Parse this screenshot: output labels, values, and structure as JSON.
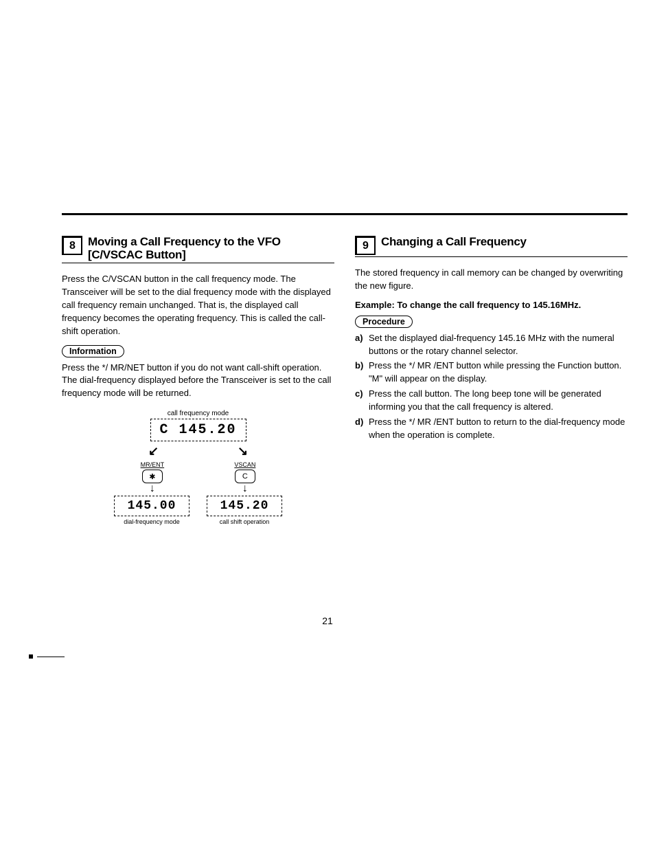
{
  "page_number": "21",
  "left": {
    "section_number": "8",
    "section_title": "Moving a Call Frequency to the VFO [C/VSCAC Button]",
    "para1": "Press the C/VSCAN button in the call frequency mode. The Transceiver will be set to the dial frequency mode with the displayed call frequency remain unchanged. That is, the displayed call frequency becomes the operating frequency. This is called the call-shift operation.",
    "info_label": "Information",
    "para2": "Press the */ MR/NET button if you do not want call-shift operation. The dial-frequency displayed before the Transceiver is set to the call frequency mode will be returned.",
    "diagram": {
      "top_label": "call frequency mode",
      "top_lcd": "C 145.20",
      "btn_left_label": "MR/ENT",
      "btn_left_sym": "✱",
      "btn_right_label": "VSCAN",
      "btn_right_sym": "C",
      "result_left_lcd": "145.00",
      "result_left_label": "dial-frequency mode",
      "result_right_lcd": "145.20",
      "result_right_label": "call shift operation"
    }
  },
  "right": {
    "section_number": "9",
    "section_title": "Changing a Call Frequency",
    "para1": "The stored frequency in call memory can be changed by overwriting the new figure.",
    "example_line": "Example: To change the call frequency to 145.16MHz.",
    "procedure_label": "Procedure",
    "steps": {
      "a": "Set the displayed dial-frequency 145.16 MHz with the numeral buttons or the rotary channel selector.",
      "b": "Press the */ MR /ENT button while pressing the Function button. \"M\" will appear on the display.",
      "c": "Press the call button. The long beep tone will be generated informing you that the call frequency is altered.",
      "d": "Press the */ MR /ENT button to return to the dial-frequency mode when the operation is complete."
    }
  }
}
